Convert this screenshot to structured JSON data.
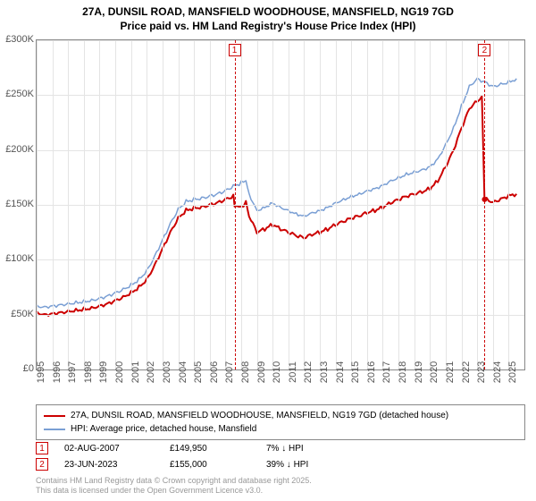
{
  "title_line1": "27A, DUNSIL ROAD, MANSFIELD WOODHOUSE, MANSFIELD, NG19 7GD",
  "title_line2": "Price paid vs. HM Land Registry's House Price Index (HPI)",
  "chart": {
    "type": "line",
    "background_color": "#ffffff",
    "grid_color": "#e4e4e4",
    "axis_color": "#888888",
    "x_range": [
      1995,
      2026
    ],
    "y_range": [
      0,
      300000
    ],
    "y_ticks": [
      0,
      50000,
      100000,
      150000,
      200000,
      250000,
      300000
    ],
    "y_tick_labels": [
      "£0",
      "£50K",
      "£100K",
      "£150K",
      "£200K",
      "£250K",
      "£300K"
    ],
    "x_ticks": [
      1995,
      1996,
      1997,
      1998,
      1999,
      2000,
      2001,
      2002,
      2003,
      2004,
      2005,
      2006,
      2007,
      2008,
      2009,
      2010,
      2011,
      2012,
      2013,
      2014,
      2015,
      2016,
      2017,
      2018,
      2019,
      2020,
      2021,
      2022,
      2023,
      2024,
      2025
    ],
    "series": [
      {
        "name": "price_paid",
        "label": "27A, DUNSIL ROAD, MANSFIELD WOODHOUSE, MANSFIELD, NG19 7GD (detached house)",
        "color": "#cc0000",
        "line_width": 2,
        "data": [
          [
            1995.0,
            52000
          ],
          [
            1995.5,
            50000
          ],
          [
            1996.0,
            51000
          ],
          [
            1996.5,
            52000
          ],
          [
            1997.0,
            53000
          ],
          [
            1997.5,
            54000
          ],
          [
            1998.0,
            55000
          ],
          [
            1998.5,
            56000
          ],
          [
            1999.0,
            58000
          ],
          [
            1999.5,
            60000
          ],
          [
            2000.0,
            63000
          ],
          [
            2000.5,
            66000
          ],
          [
            2001.0,
            70000
          ],
          [
            2001.5,
            75000
          ],
          [
            2002.0,
            82000
          ],
          [
            2002.5,
            95000
          ],
          [
            2003.0,
            110000
          ],
          [
            2003.5,
            125000
          ],
          [
            2004.0,
            138000
          ],
          [
            2004.5,
            145000
          ],
          [
            2005.0,
            147000
          ],
          [
            2005.5,
            148000
          ],
          [
            2006.0,
            150000
          ],
          [
            2006.5,
            152000
          ],
          [
            2007.0,
            155000
          ],
          [
            2007.5,
            158000
          ],
          [
            2007.58,
            149950
          ],
          [
            2008.0,
            148000
          ],
          [
            2008.3,
            152000
          ],
          [
            2008.5,
            140000
          ],
          [
            2009.0,
            125000
          ],
          [
            2009.5,
            128000
          ],
          [
            2010.0,
            132000
          ],
          [
            2010.5,
            128000
          ],
          [
            2011.0,
            125000
          ],
          [
            2011.5,
            122000
          ],
          [
            2012.0,
            120000
          ],
          [
            2012.5,
            123000
          ],
          [
            2013.0,
            125000
          ],
          [
            2013.5,
            128000
          ],
          [
            2014.0,
            132000
          ],
          [
            2014.5,
            135000
          ],
          [
            2015.0,
            138000
          ],
          [
            2015.5,
            140000
          ],
          [
            2016.0,
            143000
          ],
          [
            2016.5,
            145000
          ],
          [
            2017.0,
            148000
          ],
          [
            2017.5,
            152000
          ],
          [
            2018.0,
            155000
          ],
          [
            2018.5,
            158000
          ],
          [
            2019.0,
            160000
          ],
          [
            2019.5,
            162000
          ],
          [
            2020.0,
            165000
          ],
          [
            2020.5,
            172000
          ],
          [
            2021.0,
            185000
          ],
          [
            2021.5,
            200000
          ],
          [
            2022.0,
            220000
          ],
          [
            2022.5,
            238000
          ],
          [
            2023.0,
            245000
          ],
          [
            2023.3,
            248000
          ],
          [
            2023.47,
            155000
          ],
          [
            2023.6,
            155000
          ],
          [
            2024.0,
            152000
          ],
          [
            2024.5,
            155000
          ],
          [
            2025.0,
            158000
          ],
          [
            2025.5,
            160000
          ]
        ]
      },
      {
        "name": "hpi",
        "label": "HPI: Average price, detached house, Mansfield",
        "color": "#7a9fd4",
        "line_width": 1.5,
        "data": [
          [
            1995.0,
            58000
          ],
          [
            1995.5,
            57000
          ],
          [
            1996.0,
            58000
          ],
          [
            1996.5,
            59000
          ],
          [
            1997.0,
            60000
          ],
          [
            1997.5,
            61000
          ],
          [
            1998.0,
            62000
          ],
          [
            1998.5,
            63000
          ],
          [
            1999.0,
            65000
          ],
          [
            1999.5,
            67000
          ],
          [
            2000.0,
            70000
          ],
          [
            2000.5,
            73000
          ],
          [
            2001.0,
            77000
          ],
          [
            2001.5,
            82000
          ],
          [
            2002.0,
            90000
          ],
          [
            2002.5,
            103000
          ],
          [
            2003.0,
            118000
          ],
          [
            2003.5,
            133000
          ],
          [
            2004.0,
            146000
          ],
          [
            2004.5,
            153000
          ],
          [
            2005.0,
            155000
          ],
          [
            2005.5,
            156000
          ],
          [
            2006.0,
            158000
          ],
          [
            2006.5,
            160000
          ],
          [
            2007.0,
            163000
          ],
          [
            2007.5,
            167000
          ],
          [
            2008.0,
            170000
          ],
          [
            2008.3,
            172000
          ],
          [
            2008.5,
            160000
          ],
          [
            2009.0,
            145000
          ],
          [
            2009.5,
            148000
          ],
          [
            2010.0,
            152000
          ],
          [
            2010.5,
            148000
          ],
          [
            2011.0,
            145000
          ],
          [
            2011.5,
            142000
          ],
          [
            2012.0,
            140000
          ],
          [
            2012.5,
            143000
          ],
          [
            2013.0,
            145000
          ],
          [
            2013.5,
            148000
          ],
          [
            2014.0,
            152000
          ],
          [
            2014.5,
            155000
          ],
          [
            2015.0,
            158000
          ],
          [
            2015.5,
            160000
          ],
          [
            2016.0,
            163000
          ],
          [
            2016.5,
            165000
          ],
          [
            2017.0,
            168000
          ],
          [
            2017.5,
            172000
          ],
          [
            2018.0,
            175000
          ],
          [
            2018.5,
            178000
          ],
          [
            2019.0,
            180000
          ],
          [
            2019.5,
            182000
          ],
          [
            2020.0,
            185000
          ],
          [
            2020.5,
            192000
          ],
          [
            2021.0,
            205000
          ],
          [
            2021.5,
            220000
          ],
          [
            2022.0,
            240000
          ],
          [
            2022.5,
            258000
          ],
          [
            2023.0,
            265000
          ],
          [
            2023.5,
            262000
          ],
          [
            2024.0,
            258000
          ],
          [
            2024.5,
            260000
          ],
          [
            2025.0,
            262000
          ],
          [
            2025.5,
            265000
          ]
        ]
      }
    ],
    "transaction_markers": [
      {
        "id": "1",
        "x": 2007.58,
        "color": "#cc0000"
      },
      {
        "id": "2",
        "x": 2023.47,
        "color": "#cc0000"
      }
    ]
  },
  "legend": {
    "items": [
      {
        "series": "price_paid"
      },
      {
        "series": "hpi"
      }
    ]
  },
  "transactions": [
    {
      "marker": "1",
      "date": "02-AUG-2007",
      "price": "£149,950",
      "diff": "7% ↓ HPI",
      "color": "#cc0000"
    },
    {
      "marker": "2",
      "date": "23-JUN-2023",
      "price": "£155,000",
      "diff": "39% ↓ HPI",
      "color": "#cc0000"
    }
  ],
  "footnote_line1": "Contains HM Land Registry data © Crown copyright and database right 2025.",
  "footnote_line2": "This data is licensed under the Open Government Licence v3.0."
}
